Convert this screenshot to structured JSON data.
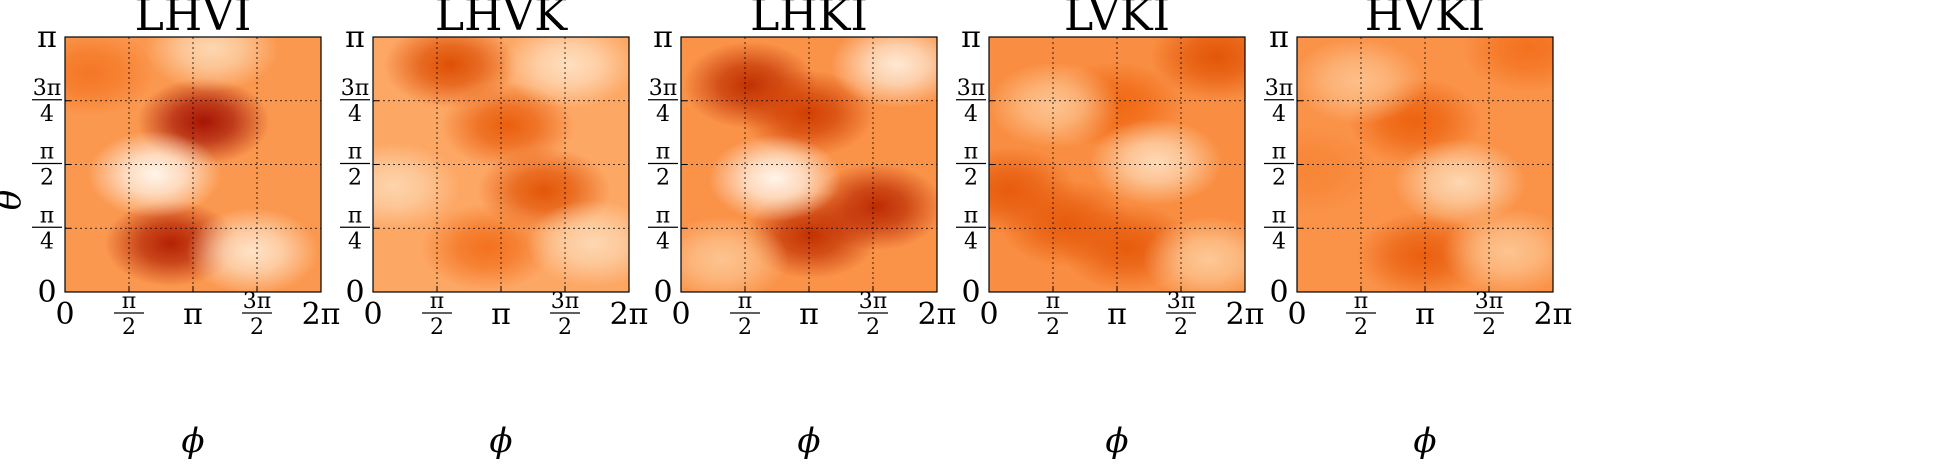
{
  "figure": {
    "ylabel": "θ",
    "xlabel": "ϕ"
  },
  "chart_data": [
    {
      "type": "heatmap",
      "title": "LHVI",
      "xlabel": "ϕ",
      "ylabel": "θ",
      "xlim": [
        0,
        6.2832
      ],
      "ylim": [
        0,
        3.1416
      ],
      "xticks": [
        "0",
        "π/2",
        "π",
        "3π/2",
        "2π"
      ],
      "yticks": [
        "0",
        "π/4",
        "π/2",
        "3π/4",
        "π"
      ],
      "grid": true,
      "colormap": "Oranges",
      "baseline": 0.48,
      "features": [
        {
          "phi": 3.4,
          "theta": 2.1,
          "value": 1.0
        },
        {
          "phi": 2.6,
          "theta": 0.6,
          "value": 0.95
        },
        {
          "phi": 2.2,
          "theta": 1.45,
          "value": 0.0
        },
        {
          "phi": 4.6,
          "theta": 0.5,
          "value": 0.12
        },
        {
          "phi": 0.6,
          "theta": 2.7,
          "value": 0.6
        },
        {
          "phi": 3.6,
          "theta": 3.0,
          "value": 0.2
        }
      ]
    },
    {
      "type": "heatmap",
      "title": "LHVK",
      "xlabel": "ϕ",
      "ylabel": "θ",
      "xlim": [
        0,
        6.2832
      ],
      "ylim": [
        0,
        3.1416
      ],
      "xticks": [
        "0",
        "π/2",
        "π",
        "3π/2",
        "2π"
      ],
      "yticks": [
        "0",
        "π/4",
        "π/2",
        "3π/4",
        "π"
      ],
      "grid": true,
      "colormap": "Oranges",
      "baseline": 0.42,
      "features": [
        {
          "phi": 1.9,
          "theta": 2.8,
          "value": 0.78
        },
        {
          "phi": 3.3,
          "theta": 2.05,
          "value": 0.7
        },
        {
          "phi": 4.2,
          "theta": 1.25,
          "value": 0.75
        },
        {
          "phi": 2.8,
          "theta": 0.55,
          "value": 0.62
        },
        {
          "phi": 0.5,
          "theta": 1.3,
          "value": 0.22
        },
        {
          "phi": 4.8,
          "theta": 2.8,
          "value": 0.15
        },
        {
          "phi": 5.4,
          "theta": 0.6,
          "value": 0.2
        }
      ]
    },
    {
      "type": "heatmap",
      "title": "LHKI",
      "xlabel": "ϕ",
      "ylabel": "θ",
      "xlim": [
        0,
        6.2832
      ],
      "ylim": [
        0,
        3.1416
      ],
      "xticks": [
        "0",
        "π/2",
        "π",
        "3π/2",
        "2π"
      ],
      "yticks": [
        "0",
        "π/4",
        "π/2",
        "3π/4",
        "π"
      ],
      "grid": true,
      "colormap": "Oranges",
      "baseline": 0.5,
      "features": [
        {
          "phi": 1.7,
          "theta": 2.55,
          "value": 0.9
        },
        {
          "phi": 3.1,
          "theta": 2.2,
          "value": 0.85
        },
        {
          "phi": 3.2,
          "theta": 0.7,
          "value": 0.9
        },
        {
          "phi": 4.8,
          "theta": 1.05,
          "value": 0.92
        },
        {
          "phi": 2.3,
          "theta": 1.4,
          "value": 0.0
        },
        {
          "phi": 5.3,
          "theta": 2.8,
          "value": 0.08
        },
        {
          "phi": 1.0,
          "theta": 0.4,
          "value": 0.3
        }
      ]
    },
    {
      "type": "heatmap",
      "title": "LVKI",
      "xlabel": "ϕ",
      "ylabel": "θ",
      "xlim": [
        0,
        6.2832
      ],
      "ylim": [
        0,
        3.1416
      ],
      "xticks": [
        "0",
        "π/2",
        "π",
        "3π/2",
        "2π"
      ],
      "yticks": [
        "0",
        "π/4",
        "π/2",
        "3π/4",
        "π"
      ],
      "grid": true,
      "colormap": "Oranges",
      "baseline": 0.52,
      "features": [
        {
          "phi": 0.5,
          "theta": 1.25,
          "value": 0.72
        },
        {
          "phi": 1.9,
          "theta": 0.85,
          "value": 0.72
        },
        {
          "phi": 3.4,
          "theta": 0.55,
          "value": 0.72
        },
        {
          "phi": 5.6,
          "theta": 2.9,
          "value": 0.75
        },
        {
          "phi": 3.1,
          "theta": 2.3,
          "value": 0.66
        },
        {
          "phi": 4.1,
          "theta": 1.6,
          "value": 0.18
        },
        {
          "phi": 1.6,
          "theta": 2.3,
          "value": 0.3
        },
        {
          "phi": 5.4,
          "theta": 0.4,
          "value": 0.28
        }
      ]
    },
    {
      "type": "heatmap",
      "title": "HVKI",
      "xlabel": "ϕ",
      "ylabel": "θ",
      "xlim": [
        0,
        6.2832
      ],
      "ylim": [
        0,
        3.1416
      ],
      "xticks": [
        "0",
        "π/2",
        "π",
        "3π/2",
        "2π"
      ],
      "yticks": [
        "0",
        "π/4",
        "π/2",
        "3π/4",
        "π"
      ],
      "grid": true,
      "colormap": "Oranges",
      "baseline": 0.5,
      "features": [
        {
          "phi": 2.9,
          "theta": 2.1,
          "value": 0.68
        },
        {
          "phi": 3.1,
          "theta": 0.45,
          "value": 0.7
        },
        {
          "phi": 5.7,
          "theta": 3.0,
          "value": 0.62
        },
        {
          "phi": 0.3,
          "theta": 1.5,
          "value": 0.55
        },
        {
          "phi": 4.0,
          "theta": 1.35,
          "value": 0.2
        },
        {
          "phi": 1.5,
          "theta": 2.6,
          "value": 0.32
        },
        {
          "phi": 5.2,
          "theta": 0.5,
          "value": 0.3
        }
      ]
    }
  ]
}
